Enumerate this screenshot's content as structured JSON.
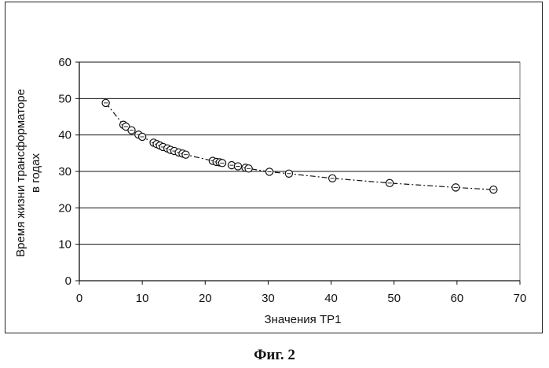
{
  "caption": "Фиг. 2",
  "chart_data": {
    "type": "scatter",
    "title": "",
    "xlabel": "Значения TP1",
    "ylabel_lines": [
      "Время жизни трансформаторе",
      "в годах"
    ],
    "xlim": [
      0,
      70
    ],
    "ylim": [
      0,
      60
    ],
    "xticks": [
      0,
      10,
      20,
      30,
      40,
      50,
      60,
      70
    ],
    "yticks": [
      0,
      10,
      20,
      30,
      40,
      50,
      60
    ],
    "grid": "horizontal major gridlines",
    "legend": "none",
    "series": [
      {
        "marker": "open-circle",
        "trendline": "dash-dot",
        "points": [
          {
            "x": 4.2,
            "y": 48.8
          },
          {
            "x": 7.0,
            "y": 42.8
          },
          {
            "x": 7.4,
            "y": 42.3
          },
          {
            "x": 8.3,
            "y": 41.3
          },
          {
            "x": 9.4,
            "y": 40.1
          },
          {
            "x": 10.0,
            "y": 39.5
          },
          {
            "x": 11.8,
            "y": 37.9
          },
          {
            "x": 12.3,
            "y": 37.5
          },
          {
            "x": 12.8,
            "y": 37.1
          },
          {
            "x": 13.3,
            "y": 36.7
          },
          {
            "x": 14.0,
            "y": 36.3
          },
          {
            "x": 14.5,
            "y": 35.9
          },
          {
            "x": 15.1,
            "y": 35.6
          },
          {
            "x": 15.8,
            "y": 35.2
          },
          {
            "x": 16.4,
            "y": 34.9
          },
          {
            "x": 16.9,
            "y": 34.6
          },
          {
            "x": 21.2,
            "y": 32.9
          },
          {
            "x": 21.8,
            "y": 32.6
          },
          {
            "x": 22.3,
            "y": 32.5
          },
          {
            "x": 22.7,
            "y": 32.3
          },
          {
            "x": 24.2,
            "y": 31.7
          },
          {
            "x": 25.2,
            "y": 31.4
          },
          {
            "x": 26.4,
            "y": 31.0
          },
          {
            "x": 26.9,
            "y": 30.8
          },
          {
            "x": 30.2,
            "y": 29.9
          },
          {
            "x": 33.3,
            "y": 29.4
          },
          {
            "x": 40.2,
            "y": 28.1
          },
          {
            "x": 49.3,
            "y": 26.8
          },
          {
            "x": 59.8,
            "y": 25.6
          },
          {
            "x": 65.8,
            "y": 25.0
          }
        ]
      }
    ]
  }
}
